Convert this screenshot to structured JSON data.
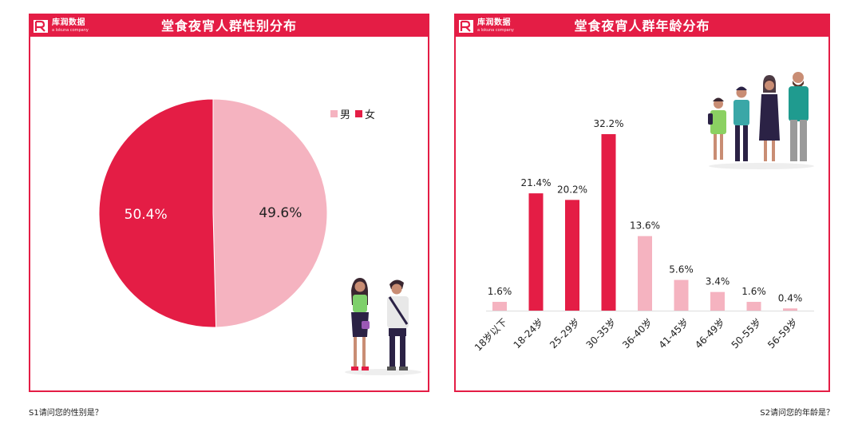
{
  "logo": {
    "cn": "库润数据",
    "en": "a lokuna company"
  },
  "colors": {
    "accent": "#e41d45",
    "male": "#f5b3c0",
    "female": "#e41d45"
  },
  "left_panel": {
    "title": "堂食夜宵人群性别分布",
    "question": "S1请问您的性别是？"
  },
  "right_panel": {
    "title": "堂食夜宵人群年龄分布",
    "question": "S2请问您的年龄是？"
  },
  "chart_data": [
    {
      "type": "pie",
      "title": "堂食夜宵人群性别分布",
      "legend_position": "top-right",
      "series": [
        {
          "name": "男",
          "value": 49.6,
          "label": "49.6%",
          "color": "#f5b3c0"
        },
        {
          "name": "女",
          "value": 50.4,
          "label": "50.4%",
          "color": "#e41d45"
        }
      ]
    },
    {
      "type": "bar",
      "title": "堂食夜宵人群年龄分布",
      "grid": false,
      "ylim": [
        0,
        32.2
      ],
      "categories": [
        "18岁以下",
        "18-24岁",
        "25-29岁",
        "30-35岁",
        "36-40岁",
        "41-45岁",
        "46-49岁",
        "50-55岁",
        "56-59岁"
      ],
      "values": [
        1.6,
        21.4,
        20.2,
        32.2,
        13.6,
        5.6,
        3.4,
        1.6,
        0.4
      ],
      "labels": [
        "1.6%",
        "21.4%",
        "20.2%",
        "32.2%",
        "13.6%",
        "5.6%",
        "3.4%",
        "1.6%",
        "0.4%"
      ],
      "bar_colors": [
        "#f5b3c0",
        "#e41d45",
        "#e41d45",
        "#e41d45",
        "#f5b3c0",
        "#f5b3c0",
        "#f5b3c0",
        "#f5b3c0",
        "#f5b3c0"
      ]
    }
  ]
}
